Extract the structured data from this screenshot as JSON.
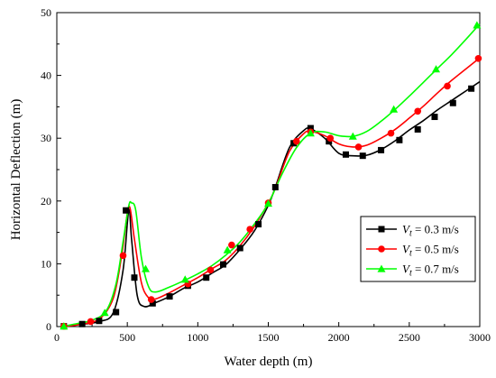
{
  "chart_data": {
    "type": "line",
    "xlabel": "Water depth (m)",
    "ylabel": "Horizontal Deflection (m)",
    "xlim": [
      0,
      3000
    ],
    "ylim": [
      0,
      50
    ],
    "xticks": [
      0,
      500,
      1000,
      1500,
      2000,
      2500,
      3000
    ],
    "yticks": [
      0,
      10,
      20,
      30,
      40,
      50
    ],
    "grid": false,
    "legend_position": "right-middle",
    "series": [
      {
        "label_main": "V",
        "label_sub": "t",
        "label_rest": " = 0.3 m/s",
        "color": "#000000",
        "marker": "square",
        "curve": [
          [
            50,
            0.05
          ],
          [
            150,
            0.3
          ],
          [
            300,
            0.8
          ],
          [
            400,
            2.2
          ],
          [
            470,
            9
          ],
          [
            510,
            18.5
          ],
          [
            530,
            14
          ],
          [
            570,
            5
          ],
          [
            620,
            3.2
          ],
          [
            700,
            3.8
          ],
          [
            800,
            4.8
          ],
          [
            900,
            6.1
          ],
          [
            1000,
            7.1
          ],
          [
            1100,
            8.5
          ],
          [
            1200,
            9.9
          ],
          [
            1300,
            12.3
          ],
          [
            1400,
            15.2
          ],
          [
            1500,
            19.3
          ],
          [
            1550,
            22.2
          ],
          [
            1650,
            28.5
          ],
          [
            1750,
            31.2
          ],
          [
            1800,
            31.5
          ],
          [
            1900,
            30
          ],
          [
            2000,
            27.6
          ],
          [
            2100,
            27.2
          ],
          [
            2200,
            27.3
          ],
          [
            2300,
            28.2
          ],
          [
            2400,
            29.6
          ],
          [
            2500,
            31.3
          ],
          [
            2600,
            32.8
          ],
          [
            2700,
            34.5
          ],
          [
            2800,
            36
          ],
          [
            2900,
            37.5
          ],
          [
            3000,
            39
          ]
        ],
        "markers": [
          [
            50,
            0.05
          ],
          [
            180,
            0.4
          ],
          [
            300,
            0.9
          ],
          [
            420,
            2.3
          ],
          [
            490,
            18.5
          ],
          [
            550,
            7.8
          ],
          [
            680,
            3.7
          ],
          [
            800,
            4.8
          ],
          [
            930,
            6.5
          ],
          [
            1060,
            7.8
          ],
          [
            1180,
            9.9
          ],
          [
            1300,
            12.5
          ],
          [
            1430,
            16.3
          ],
          [
            1550,
            22.2
          ],
          [
            1680,
            29.2
          ],
          [
            1800,
            31.6
          ],
          [
            1930,
            29.5
          ],
          [
            2050,
            27.4
          ],
          [
            2170,
            27.2
          ],
          [
            2300,
            28.1
          ],
          [
            2430,
            29.7
          ],
          [
            2560,
            31.4
          ],
          [
            2680,
            33.4
          ],
          [
            2810,
            35.6
          ],
          [
            2940,
            37.9
          ]
        ]
      },
      {
        "label_main": "V",
        "label_sub": "t",
        "label_rest": " = 0.5 m/s",
        "color": "#ff0000",
        "marker": "circle",
        "curve": [
          [
            50,
            0.05
          ],
          [
            150,
            0.3
          ],
          [
            300,
            1.2
          ],
          [
            400,
            4.5
          ],
          [
            460,
            11.3
          ],
          [
            500,
            18
          ],
          [
            520,
            18.8
          ],
          [
            550,
            14
          ],
          [
            600,
            7
          ],
          [
            650,
            4.6
          ],
          [
            700,
            4.4
          ],
          [
            800,
            5.4
          ],
          [
            900,
            6.6
          ],
          [
            1000,
            7.8
          ],
          [
            1100,
            9.2
          ],
          [
            1200,
            10.6
          ],
          [
            1300,
            12.9
          ],
          [
            1400,
            15.9
          ],
          [
            1500,
            19.7
          ],
          [
            1550,
            22
          ],
          [
            1650,
            27.9
          ],
          [
            1750,
            30.7
          ],
          [
            1800,
            31.1
          ],
          [
            1900,
            30.4
          ],
          [
            2000,
            29.1
          ],
          [
            2100,
            28.6
          ],
          [
            2200,
            28.9
          ],
          [
            2300,
            30
          ],
          [
            2400,
            31.4
          ],
          [
            2500,
            33.2
          ],
          [
            2600,
            35.1
          ],
          [
            2700,
            37.2
          ],
          [
            2800,
            39.2
          ],
          [
            2900,
            41
          ],
          [
            3000,
            42.8
          ]
        ],
        "markers": [
          [
            50,
            0.05
          ],
          [
            240,
            0.8
          ],
          [
            470,
            11.3
          ],
          [
            670,
            4.3
          ],
          [
            930,
            6.8
          ],
          [
            1090,
            9
          ],
          [
            1240,
            13
          ],
          [
            1370,
            15.5
          ],
          [
            1500,
            19.7
          ],
          [
            1700,
            29.5
          ],
          [
            1800,
            31
          ],
          [
            1940,
            30
          ],
          [
            2140,
            28.6
          ],
          [
            2370,
            30.8
          ],
          [
            2560,
            34.3
          ],
          [
            2770,
            38.3
          ],
          [
            2990,
            42.7
          ]
        ]
      },
      {
        "label_main": "V",
        "label_sub": "t",
        "label_rest": " = 0.7 m/s",
        "color": "#00ff00",
        "marker": "triangle",
        "curve": [
          [
            50,
            0.05
          ],
          [
            150,
            0.5
          ],
          [
            250,
            1
          ],
          [
            350,
            2.5
          ],
          [
            420,
            6.8
          ],
          [
            470,
            13.5
          ],
          [
            510,
            19.2
          ],
          [
            530,
            19.7
          ],
          [
            560,
            18.5
          ],
          [
            600,
            11
          ],
          [
            650,
            6.4
          ],
          [
            700,
            5.5
          ],
          [
            800,
            6.3
          ],
          [
            900,
            7.3
          ],
          [
            1000,
            8.4
          ],
          [
            1100,
            9.7
          ],
          [
            1200,
            11.4
          ],
          [
            1300,
            13.5
          ],
          [
            1400,
            16.3
          ],
          [
            1500,
            19.6
          ],
          [
            1600,
            24.4
          ],
          [
            1700,
            28.5
          ],
          [
            1800,
            30.8
          ],
          [
            1900,
            31
          ],
          [
            2000,
            30.4
          ],
          [
            2100,
            30.3
          ],
          [
            2200,
            31.1
          ],
          [
            2300,
            32.7
          ],
          [
            2400,
            34.6
          ],
          [
            2500,
            36.7
          ],
          [
            2600,
            38.9
          ],
          [
            2700,
            41.1
          ],
          [
            2800,
            43.3
          ],
          [
            2900,
            45.7
          ],
          [
            3000,
            48.2
          ]
        ],
        "markers": [
          [
            50,
            0.05
          ],
          [
            340,
            2.2
          ],
          [
            630,
            9.2
          ],
          [
            910,
            7.5
          ],
          [
            1210,
            12.2
          ],
          [
            1500,
            19.6
          ],
          [
            1800,
            30.8
          ],
          [
            2100,
            30.3
          ],
          [
            2390,
            34.6
          ],
          [
            2690,
            41
          ],
          [
            2980,
            48
          ]
        ]
      }
    ]
  }
}
